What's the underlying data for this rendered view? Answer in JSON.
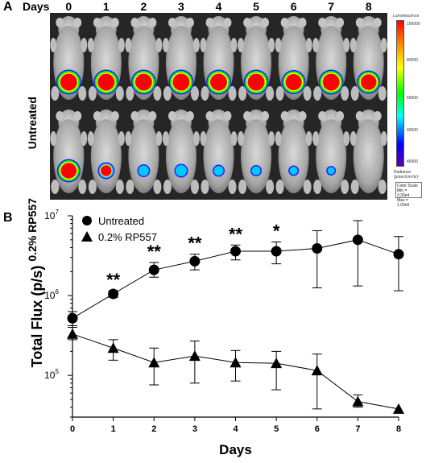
{
  "panel_a": {
    "letter": "A",
    "days_label": "Days",
    "days": [
      "0",
      "1",
      "2",
      "3",
      "4",
      "5",
      "6",
      "7",
      "8"
    ],
    "rows": [
      "Untreated",
      "0.2% RP557"
    ],
    "colorbar": {
      "title": "Luminescence",
      "ticks": [
        "100000",
        "80000",
        "60000",
        "40000",
        "40000"
      ],
      "radiance_label": "Radiance",
      "radiance_units": "(p/sec/cm²/sr)",
      "scale_title": "Color Scale",
      "scale_min": "Min = 3.30e4",
      "scale_max": "Max = 1.00e5",
      "colors": [
        "#ff0000",
        "#ff8000",
        "#ffff00",
        "#00ff00",
        "#00ffff",
        "#0000ff",
        "#5a00b0"
      ]
    },
    "signal_level_untreated": [
      1,
      1,
      1,
      1,
      1,
      1,
      0.95,
      1,
      0.9
    ],
    "signal_level_treated": [
      0.9,
      0.5,
      0.25,
      0.3,
      0.2,
      0.15,
      0.1,
      0.05,
      0.02
    ]
  },
  "panel_b": {
    "letter": "B",
    "chart_data": {
      "type": "line",
      "xlabel": "Days",
      "ylabel": "Total Flux (p/s)",
      "y_scale": "log",
      "ylim": [
        30000,
        10000000
      ],
      "xlim": [
        0,
        8
      ],
      "x_ticks": [
        "0",
        "1",
        "2",
        "3",
        "4",
        "5",
        "6",
        "7",
        "8"
      ],
      "y_ticks": [
        {
          "value": 100000,
          "label": "10",
          "exp": "5"
        },
        {
          "value": 1000000,
          "label": "10",
          "exp": "6"
        },
        {
          "value": 10000000,
          "label": "10",
          "exp": "7"
        }
      ],
      "legend_position": "top-left",
      "series": [
        {
          "name": "Untreated",
          "marker": "circle",
          "x": [
            0,
            1,
            2,
            3,
            4,
            5,
            6,
            7,
            8
          ],
          "y": [
            520000,
            1050000,
            2100000,
            2700000,
            3600000,
            3600000,
            3900000,
            5000000,
            3300000
          ],
          "err_low": [
            420000,
            950000,
            1700000,
            2100000,
            2800000,
            2500000,
            1250000,
            1320000,
            1150000
          ],
          "err_high": [
            630000,
            1150000,
            2600000,
            3300000,
            4300000,
            4700000,
            6500000,
            8700000,
            5500000
          ]
        },
        {
          "name": "0.2% RP557",
          "marker": "triangle",
          "x": [
            0,
            1,
            2,
            3,
            4,
            5,
            6,
            7,
            8
          ],
          "y": [
            330000,
            220000,
            145000,
            175000,
            145000,
            142000,
            115000,
            47000,
            38000
          ],
          "err_low": [
            280000,
            155000,
            76000,
            80000,
            85000,
            66000,
            38000,
            40000,
            38000
          ],
          "err_high": [
            400000,
            280000,
            220000,
            270000,
            205000,
            200000,
            185000,
            57000,
            38000
          ]
        }
      ],
      "annotations": [
        {
          "x": 1,
          "text": "**"
        },
        {
          "x": 2,
          "text": "**"
        },
        {
          "x": 3,
          "text": "**"
        },
        {
          "x": 4,
          "text": "**"
        },
        {
          "x": 5,
          "text": "*"
        }
      ]
    }
  }
}
